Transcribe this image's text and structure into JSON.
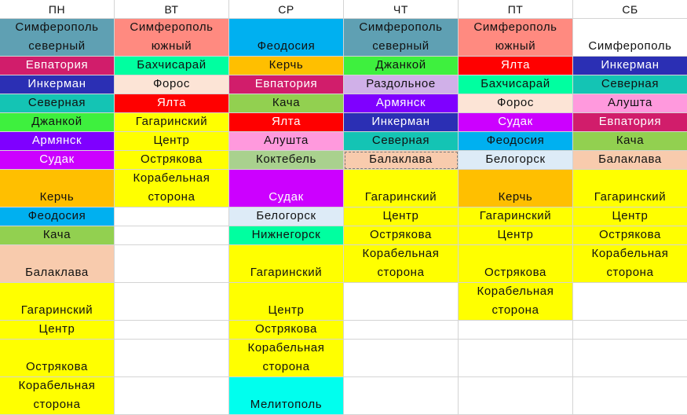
{
  "header": [
    "ПН",
    "ВТ",
    "СР",
    "ЧТ",
    "ПТ",
    "СБ"
  ],
  "columns": [
    [
      {
        "text": "Симферополь\nсеверный",
        "color": "#5fa0b3",
        "rows": 2
      },
      {
        "text": "Евпатория",
        "color": "#d11d6b",
        "rows": 1
      },
      {
        "text": "Инкерман",
        "color": "#2b2fb4",
        "rows": 1
      },
      {
        "text": "Северная",
        "color": "#14c4b4",
        "rows": 1
      },
      {
        "text": "Джанкой",
        "color": "#3ef03e",
        "rows": 1
      },
      {
        "text": "Армянск",
        "color": "#7f00ff",
        "rows": 1
      },
      {
        "text": "Судак",
        "color": "#cc00ff",
        "rows": 1
      },
      {
        "text": "Керчь",
        "color": "#ffbf00",
        "rows": 2
      },
      {
        "text": "Феодосия",
        "color": "#00b0f0",
        "rows": 1
      },
      {
        "text": "Кача",
        "color": "#92d050",
        "rows": 1
      },
      {
        "text": "Балаклава",
        "color": "#f8cbad",
        "rows": 2
      },
      {
        "text": "Гагаринский",
        "color": "#ffff00",
        "rows": 2
      },
      {
        "text": "Центр",
        "color": "#ffff00",
        "rows": 1
      },
      {
        "text": "Острякова",
        "color": "#ffff00",
        "rows": 2
      },
      {
        "text": "Корабельная\nсторона",
        "color": "#ffff00",
        "rows": 2
      }
    ],
    [
      {
        "text": "Симферополь\nюжный",
        "color": "#ff8a80",
        "rows": 2
      },
      {
        "text": "Бахчисарай",
        "color": "#00ffa0",
        "rows": 1
      },
      {
        "text": "Форос",
        "color": "#fce4d6",
        "rows": 1
      },
      {
        "text": "Ялта",
        "color": "#ff0000",
        "rows": 1
      },
      {
        "text": "Гагаринский",
        "color": "#ffff00",
        "rows": 1
      },
      {
        "text": "Центр",
        "color": "#ffff00",
        "rows": 1
      },
      {
        "text": "Острякова",
        "color": "#ffff00",
        "rows": 1
      },
      {
        "text": "Корабельная\nсторона",
        "color": "#ffff00",
        "rows": 2
      },
      {
        "text": "",
        "color": "#ffffff",
        "rows": 1
      },
      {
        "text": "",
        "color": "#ffffff",
        "rows": 1
      },
      {
        "text": "",
        "color": "#ffffff",
        "rows": 2
      },
      {
        "text": "",
        "color": "#ffffff",
        "rows": 2
      },
      {
        "text": "",
        "color": "#ffffff",
        "rows": 1
      },
      {
        "text": "",
        "color": "#ffffff",
        "rows": 2
      },
      {
        "text": "",
        "color": "#ffffff",
        "rows": 2
      }
    ],
    [
      {
        "text": "Феодосия",
        "color": "#00b0f0",
        "rows": 2
      },
      {
        "text": "Керчь",
        "color": "#ffbf00",
        "rows": 1
      },
      {
        "text": "Евпатория",
        "color": "#d11d6b",
        "rows": 1
      },
      {
        "text": "Кача",
        "color": "#92d050",
        "rows": 1
      },
      {
        "text": "Ялта",
        "color": "#ff0000",
        "rows": 1
      },
      {
        "text": "Алушта",
        "color": "#ff99dd",
        "rows": 1
      },
      {
        "text": "Коктебель",
        "color": "#a9d18e",
        "rows": 1
      },
      {
        "text": "Судак",
        "color": "#cc00ff",
        "rows": 2
      },
      {
        "text": "Белогорск",
        "color": "#ddebf7",
        "rows": 1
      },
      {
        "text": "Нижнегорск",
        "color": "#00ffa0",
        "rows": 1
      },
      {
        "text": "Гагаринский",
        "color": "#ffff00",
        "rows": 2
      },
      {
        "text": "Центр",
        "color": "#ffff00",
        "rows": 2
      },
      {
        "text": "Острякова",
        "color": "#ffff00",
        "rows": 1
      },
      {
        "text": "Корабельная\nсторона",
        "color": "#ffff00",
        "rows": 2
      },
      {
        "text": "Мелитополь",
        "color": "#00ffee",
        "rows": 2
      }
    ],
    [
      {
        "text": "Симферополь\nсеверный",
        "color": "#5fa0b3",
        "rows": 2
      },
      {
        "text": "Джанкой",
        "color": "#3ef03e",
        "rows": 1
      },
      {
        "text": "Раздольное",
        "color": "#d0b0e8",
        "rows": 1
      },
      {
        "text": "Армянск",
        "color": "#7f00ff",
        "rows": 1
      },
      {
        "text": "Инкерман",
        "color": "#2b2fb4",
        "rows": 1
      },
      {
        "text": "Северная",
        "color": "#14c4b4",
        "rows": 1
      },
      {
        "text": "Балаклава",
        "color": "#f8cbad",
        "rows": 1,
        "dashed": true
      },
      {
        "text": "Гагаринский",
        "color": "#ffff00",
        "rows": 2
      },
      {
        "text": "Центр",
        "color": "#ffff00",
        "rows": 1
      },
      {
        "text": "Острякова",
        "color": "#ffff00",
        "rows": 1
      },
      {
        "text": "Корабельная\nсторона",
        "color": "#ffff00",
        "rows": 2
      },
      {
        "text": "",
        "color": "#ffffff",
        "rows": 2
      },
      {
        "text": "",
        "color": "#ffffff",
        "rows": 1
      },
      {
        "text": "",
        "color": "#ffffff",
        "rows": 2
      },
      {
        "text": "",
        "color": "#ffffff",
        "rows": 2
      }
    ],
    [
      {
        "text": "Симферополь\nюжный",
        "color": "#ff8a80",
        "rows": 2
      },
      {
        "text": "Ялта",
        "color": "#ff0000",
        "rows": 1
      },
      {
        "text": "Бахчисарай",
        "color": "#00ffa0",
        "rows": 1
      },
      {
        "text": "Форос",
        "color": "#fce4d6",
        "rows": 1
      },
      {
        "text": "Судак",
        "color": "#cc00ff",
        "rows": 1
      },
      {
        "text": "Феодосия",
        "color": "#00b0f0",
        "rows": 1
      },
      {
        "text": "Белогорск",
        "color": "#ddebf7",
        "rows": 1
      },
      {
        "text": "Керчь",
        "color": "#ffbf00",
        "rows": 2
      },
      {
        "text": "Гагаринский",
        "color": "#ffff00",
        "rows": 1
      },
      {
        "text": "Центр",
        "color": "#ffff00",
        "rows": 1
      },
      {
        "text": "Острякова",
        "color": "#ffff00",
        "rows": 2
      },
      {
        "text": "Корабельная\nсторона",
        "color": "#ffff00",
        "rows": 2
      },
      {
        "text": "",
        "color": "#ffffff",
        "rows": 1
      },
      {
        "text": "",
        "color": "#ffffff",
        "rows": 2
      },
      {
        "text": "",
        "color": "#ffffff",
        "rows": 2
      }
    ],
    [
      {
        "text": "Симферополь",
        "color": "#ffffff",
        "rows": 2
      },
      {
        "text": "Инкерман",
        "color": "#2b2fb4",
        "rows": 1
      },
      {
        "text": "Северная",
        "color": "#14c4b4",
        "rows": 1
      },
      {
        "text": "Алушта",
        "color": "#ff99dd",
        "rows": 1
      },
      {
        "text": "Евпатория",
        "color": "#d11d6b",
        "rows": 1
      },
      {
        "text": "Кача",
        "color": "#92d050",
        "rows": 1
      },
      {
        "text": "Балаклава",
        "color": "#f8cbad",
        "rows": 1
      },
      {
        "text": "Гагаринский",
        "color": "#ffff00",
        "rows": 2
      },
      {
        "text": "Центр",
        "color": "#ffff00",
        "rows": 1
      },
      {
        "text": "Острякова",
        "color": "#ffff00",
        "rows": 1
      },
      {
        "text": "Корабельная\nсторона",
        "color": "#ffff00",
        "rows": 2
      },
      {
        "text": "",
        "color": "#ffffff",
        "rows": 2
      },
      {
        "text": "",
        "color": "#ffffff",
        "rows": 1
      },
      {
        "text": "",
        "color": "#ffffff",
        "rows": 2
      },
      {
        "text": "",
        "color": "#ffffff",
        "rows": 2
      }
    ]
  ]
}
